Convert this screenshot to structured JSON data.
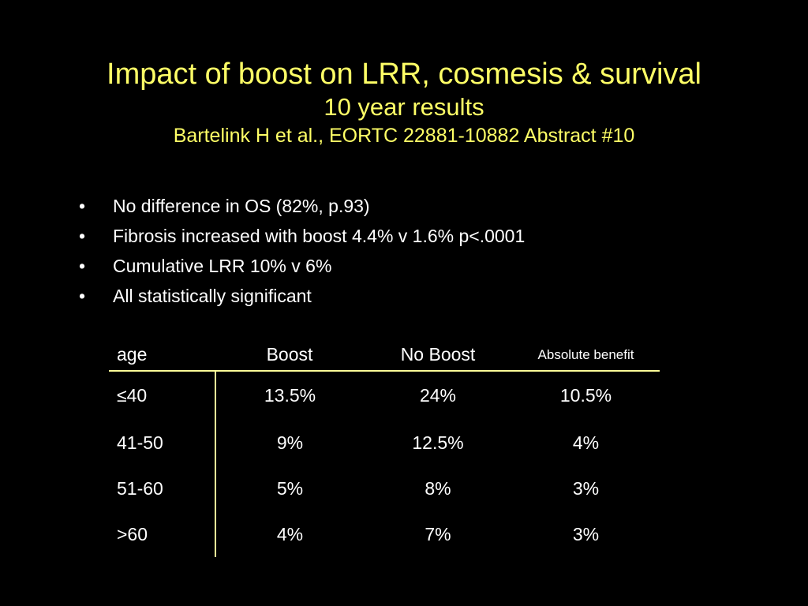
{
  "slide": {
    "title": "Impact of boost on LRR, cosmesis & survival",
    "subtitle": "10 year results",
    "citation": "Bartelink H et al., EORTC 22881-10882 Abstract #10",
    "bullet_glyph": "•",
    "bullets": [
      "No difference in OS (82%, p.93)",
      "Fibrosis increased with boost 4.4% v 1.6% p<.0001",
      "Cumulative LRR 10% v 6%",
      "All statistically significant"
    ],
    "colors": {
      "background": "#000000",
      "title": "#FFFF66",
      "body_text": "#FFFFFF",
      "table_rules": "#FFFF99"
    }
  },
  "table": {
    "headers": [
      "age",
      "Boost",
      "No Boost",
      "Absolute benefit"
    ],
    "rows": [
      [
        "≤40",
        "13.5%",
        "24%",
        "10.5%"
      ],
      [
        "41-50",
        "9%",
        "12.5%",
        "4%"
      ],
      [
        "51-60",
        "5%",
        "8%",
        "3%"
      ],
      [
        ">60",
        "4%",
        "7%",
        "3%"
      ]
    ]
  }
}
